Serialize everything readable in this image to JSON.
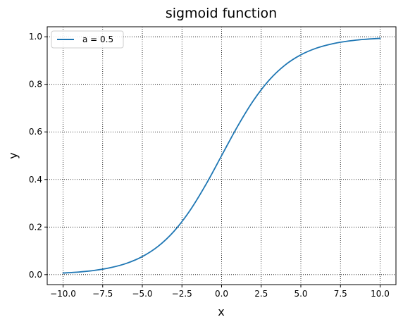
{
  "chart_data": {
    "type": "line",
    "title": "sigmoid function",
    "xlabel": "x",
    "ylabel": "y",
    "xlim": [
      -11.0,
      11.0
    ],
    "ylim": [
      -0.042,
      1.042
    ],
    "xticks": [
      -10.0,
      -7.5,
      -5.0,
      -2.5,
      0.0,
      2.5,
      5.0,
      7.5,
      10.0
    ],
    "xtick_labels": [
      "−10.0",
      "−7.5",
      "−5.0",
      "−2.5",
      "0.0",
      "2.5",
      "5.0",
      "7.5",
      "10.0"
    ],
    "yticks": [
      0.0,
      0.2,
      0.4,
      0.6,
      0.8,
      1.0
    ],
    "ytick_labels": [
      "0.0",
      "0.2",
      "0.4",
      "0.6",
      "0.8",
      "1.0"
    ],
    "grid": true,
    "grid_style": "dotted",
    "legend_position": "top-left",
    "series": [
      {
        "name": "a = 0.5",
        "color": "#1f77b4",
        "x": [
          -10,
          -9,
          -8,
          -7,
          -6,
          -5,
          -4,
          -3,
          -2,
          -1,
          0,
          1,
          2,
          3,
          4,
          5,
          6,
          7,
          8,
          9,
          10
        ],
        "y": [
          0.0067,
          0.011,
          0.018,
          0.0293,
          0.0474,
          0.0759,
          0.1192,
          0.1824,
          0.2689,
          0.3775,
          0.5,
          0.6225,
          0.7311,
          0.8176,
          0.8808,
          0.9241,
          0.9526,
          0.9707,
          0.982,
          0.989,
          0.9933
        ]
      }
    ]
  }
}
